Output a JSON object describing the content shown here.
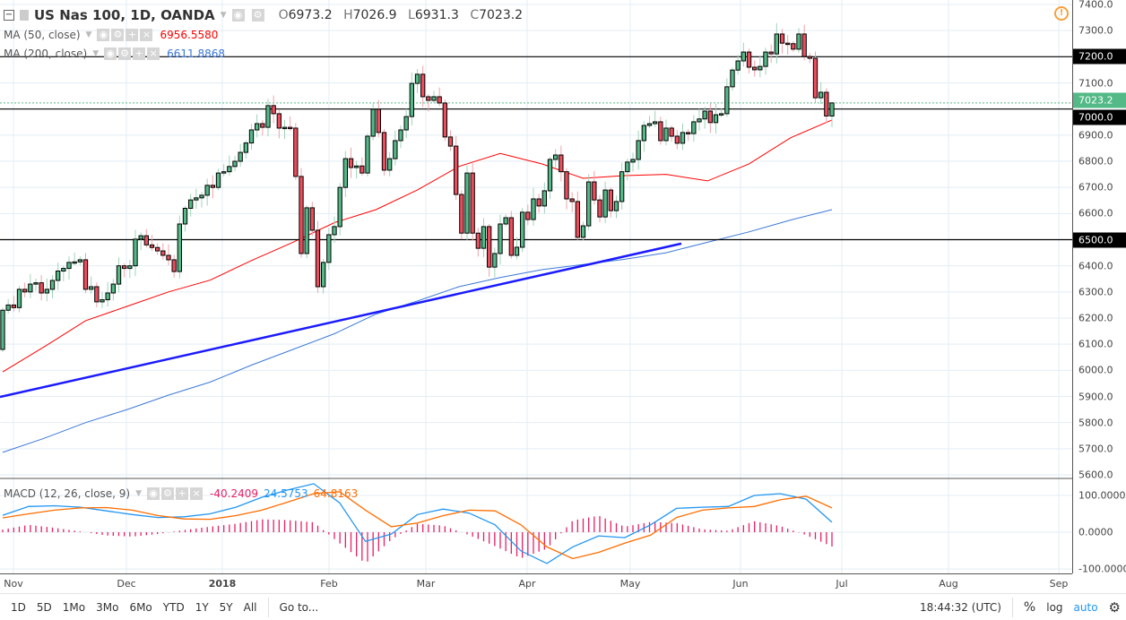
{
  "header": {
    "symbol": "US Nas 100, 1D, OANDA",
    "open_label": "O",
    "open": "6973.2",
    "high_label": "H",
    "high": "7026.9",
    "low_label": "L",
    "low": "6931.3",
    "close_label": "C",
    "close": "7023.2"
  },
  "indicators": {
    "ma50": {
      "label": "MA (50, close)",
      "value": "6956.5580",
      "color": "#ff0000"
    },
    "ma200": {
      "label": "MA (200, close)",
      "value": "6611.8868",
      "color": "#3c78d8"
    },
    "macd": {
      "label": "MACD (12, 26, close, 9)",
      "hist": "-40.2409",
      "macd": "24.5753",
      "signal": "64.8163",
      "hist_color": "#e91e63",
      "macd_color": "#2196f3",
      "signal_color": "#ff6d00"
    }
  },
  "price_axis": {
    "labels": [
      "7400.0",
      "7300.0",
      "7200.0",
      "7100.0",
      "7000.0",
      "6900.0",
      "6800.0",
      "6700.0",
      "6600.0",
      "6500.0",
      "6400.0",
      "6300.0",
      "6200.0",
      "6100.0",
      "6000.0",
      "5900.0",
      "5800.0",
      "5700.0",
      "5600.0"
    ],
    "tags": [
      {
        "text": "7200.0",
        "price": 7200,
        "color": "#000000"
      },
      {
        "text": "7023.2",
        "price": 7023.2,
        "color": "#53b987"
      },
      {
        "text": "7000.0",
        "price": 7000,
        "color": "#000000"
      },
      {
        "text": "6500.0",
        "price": 6500,
        "color": "#000000"
      }
    ]
  },
  "macd_axis": {
    "labels": [
      "100.0000",
      "0.0000",
      "-100.0000"
    ]
  },
  "time_axis": {
    "labels": [
      "Nov",
      "Dec",
      "2018",
      "Feb",
      "Mar",
      "Apr",
      "May",
      "Jun",
      "Jul",
      "Aug",
      "Sep"
    ]
  },
  "toolbar": {
    "ranges": [
      "1D",
      "5D",
      "1Mo",
      "3Mo",
      "6Mo",
      "YTD",
      "1Y",
      "5Y",
      "All"
    ],
    "goto": "Go to...",
    "clock": "18:44:32 (UTC)",
    "percent": "%",
    "log": "log",
    "auto": "auto"
  },
  "colors": {
    "up": "#53b987",
    "down": "#eb4d5c",
    "trendline": "#1a1aff",
    "hline": "#000000"
  },
  "chart_data": {
    "type": "candlestick",
    "ylim": [
      5600,
      7400
    ],
    "first_open": 6080,
    "closes": [
      6230,
      6250,
      6240,
      6310,
      6300,
      6330,
      6335,
      6296,
      6310,
      6344,
      6380,
      6390,
      6413,
      6415,
      6423,
      6310,
      6320,
      6262,
      6270,
      6296,
      6330,
      6400,
      6390,
      6400,
      6502,
      6515,
      6480,
      6470,
      6457,
      6440,
      6423,
      6378,
      6560,
      6620,
      6652,
      6660,
      6670,
      6708,
      6700,
      6755,
      6760,
      6780,
      6800,
      6834,
      6870,
      6920,
      6944,
      6930,
      7013,
      6982,
      6927,
      6930,
      6927,
      6742,
      6447,
      6622,
      6536,
      6320,
      6413,
      6519,
      6550,
      6700,
      6810,
      6776,
      6782,
      6755,
      6896,
      6999,
      6910,
      6766,
      6810,
      6879,
      6920,
      6971,
      7098,
      7133,
      7047,
      7033,
      7047,
      7023,
      6893,
      6858,
      6673,
      6525,
      6755,
      6525,
      6467,
      6550,
      6395,
      6447,
      6560,
      6584,
      6440,
      6471,
      6605,
      6577,
      6656,
      6629,
      6687,
      6807,
      6824,
      6760,
      6656,
      6646,
      6509,
      6553,
      6721,
      6652,
      6587,
      6690,
      6611,
      6646,
      6760,
      6797,
      6807,
      6879,
      6937,
      6944,
      6951,
      6879,
      6927,
      6896,
      6869,
      6910,
      6906,
      6951,
      6962,
      6992,
      6948,
      6978,
      6982,
      7085,
      7149,
      7184,
      7218,
      7160,
      7150,
      7163,
      7218,
      7211,
      7287,
      7252,
      7250,
      7229,
      7287,
      7201,
      7194,
      7043,
      7064,
      6973.2,
      7023.2
    ],
    "last_bar": {
      "open": 6973.2,
      "high": 7026.9,
      "low": 6931.3,
      "close": 7023.2
    },
    "ma50": [
      5994,
      6090,
      6190,
      6245,
      6300,
      6345,
      6420,
      6490,
      6565,
      6615,
      6690,
      6780,
      6830,
      6790,
      6735,
      6745,
      6750,
      6725,
      6790,
      6890,
      6958
    ],
    "ma200": [
      5686,
      5740,
      5800,
      5850,
      5905,
      5955,
      6020,
      6080,
      6140,
      6215,
      6265,
      6320,
      6355,
      6385,
      6405,
      6425,
      6450,
      6490,
      6530,
      6575,
      6615
    ],
    "horizontal_levels": [
      7200,
      7000,
      6500
    ],
    "trendline": {
      "from": 5898,
      "to": 6485
    },
    "macd_ylim": [
      -110,
      125
    ],
    "macd_line": [
      46,
      70,
      72,
      68,
      58,
      48,
      40,
      42,
      50,
      68,
      95,
      115,
      132,
      80,
      -25,
      -5,
      48,
      63,
      52,
      20,
      -51,
      -85,
      -40,
      -10,
      -15,
      20,
      65,
      68,
      70,
      100,
      105,
      90,
      27
    ],
    "signal_line": [
      39,
      50,
      60,
      66,
      67,
      60,
      45,
      36,
      35,
      45,
      60,
      82,
      105,
      110,
      60,
      15,
      25,
      45,
      60,
      58,
      20,
      -40,
      -72,
      -55,
      -30,
      -8,
      40,
      60,
      66,
      70,
      88,
      98,
      66
    ]
  }
}
